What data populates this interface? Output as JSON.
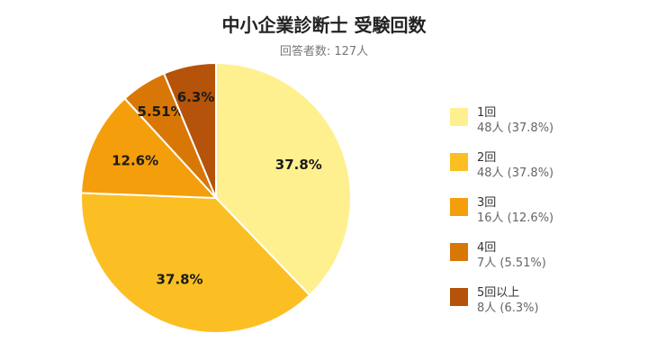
{
  "title": "中小企業診断士 受験回数",
  "subtitle": "回答者数: 127人",
  "colors": [
    "#fff08f",
    "#fbbf24",
    "#f59e0b",
    "#d97706",
    "#b45309"
  ],
  "chart_data": {
    "type": "pie",
    "title": "中小企業診断士 受験回数",
    "subtitle": "回答者数: 127人",
    "categories": [
      "1回",
      "2回",
      "3回",
      "4回",
      "5回以上"
    ],
    "values": [
      48,
      48,
      16,
      7,
      8
    ],
    "percent_labels": [
      "37.8%",
      "37.8%",
      "12.6%",
      "5.51%",
      "6.3%"
    ],
    "legend_values": [
      "48人 (37.8%)",
      "48人 (37.8%)",
      "16人 (12.6%)",
      "7人 (5.51%)",
      "8人 (6.3%)"
    ],
    "legend_position": "right",
    "start": "top, clockwise"
  }
}
